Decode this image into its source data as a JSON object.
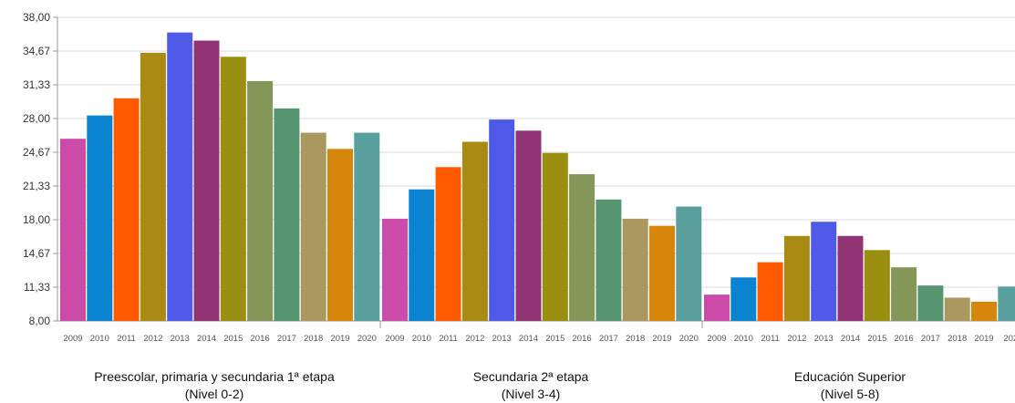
{
  "chart_data": {
    "type": "bar",
    "y_ticks": [
      "38,00",
      "34,67",
      "31,33",
      "28,00",
      "24,67",
      "21,33",
      "18,00",
      "14,67",
      "11,33",
      "8,00"
    ],
    "ylim": [
      8.0,
      38.0
    ],
    "years": [
      "2009",
      "2010",
      "2011",
      "2012",
      "2013",
      "2014",
      "2015",
      "2016",
      "2017",
      "2018",
      "2019",
      "2020"
    ],
    "year_colors": [
      "#cc4aa8",
      "#0a84d0",
      "#ff5a00",
      "#a98b14",
      "#4f5be8",
      "#923374",
      "#9a8f11",
      "#849759",
      "#559670",
      "#ab9760",
      "#d5860b",
      "#589f9d"
    ],
    "groups": [
      {
        "label_line1": "Preescolar, primaria y secundaria 1ª etapa",
        "label_line2": "(Nivel 0-2)",
        "values": [
          26.0,
          28.3,
          30.0,
          34.5,
          36.5,
          35.7,
          34.1,
          31.7,
          29.0,
          26.6,
          25.0,
          26.6
        ]
      },
      {
        "label_line1": "Secundaria 2ª etapa",
        "label_line2": "(Nivel 3-4)",
        "values": [
          18.1,
          21.0,
          23.2,
          25.7,
          27.9,
          26.8,
          24.6,
          22.5,
          20.0,
          18.1,
          17.4,
          19.3
        ]
      },
      {
        "label_line1": "Educación Superior",
        "label_line2": "(Nivel 5-8)",
        "values": [
          10.6,
          12.3,
          13.8,
          16.4,
          17.8,
          16.4,
          15.0,
          13.3,
          11.5,
          10.3,
          9.9,
          11.4
        ]
      }
    ],
    "last_visible_tick": "202",
    "grid": true,
    "legend": "none"
  }
}
